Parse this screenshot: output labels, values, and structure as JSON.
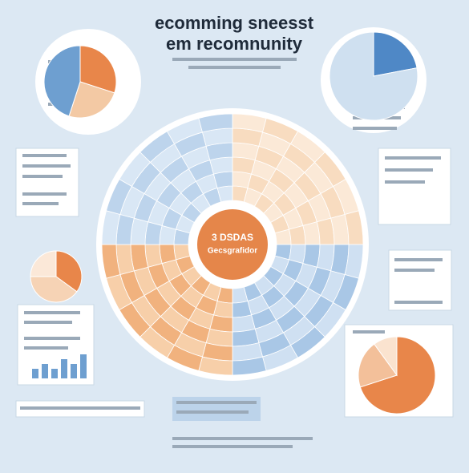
{
  "header": {
    "title_line1": "ecomming sneesst",
    "title_line2": "em recomnunity"
  },
  "center": {
    "line1": "3 DSDAS",
    "line2": "Gecsgrafidor"
  },
  "pies": [
    {
      "values": [
        30,
        25,
        45
      ],
      "colors": [
        "#e8864a",
        "#f3c9a4",
        "#6e9fd0"
      ]
    },
    {
      "values": [
        22,
        78
      ],
      "colors": [
        "#4f88c6",
        "#cfe0f0"
      ]
    },
    {
      "values": [
        35,
        40,
        25
      ],
      "colors": [
        "#e8864a",
        "#f6d3b5",
        "#fbe8d8"
      ]
    },
    {
      "values": [
        70,
        20,
        10
      ],
      "colors": [
        "#e8864a",
        "#f3c09a",
        "#fae3cf"
      ]
    }
  ],
  "bars": {
    "values": [
      2,
      3,
      2,
      4,
      3,
      5
    ],
    "color": "#6e9fd0"
  }
}
